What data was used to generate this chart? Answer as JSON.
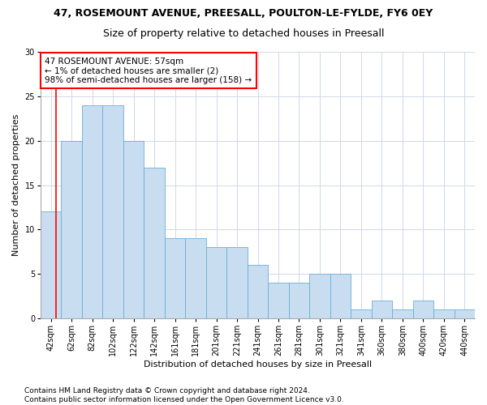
{
  "title": "47, ROSEMOUNT AVENUE, PREESALL, POULTON-LE-FYLDE, FY6 0EY",
  "subtitle": "Size of property relative to detached houses in Preesall",
  "xlabel": "Distribution of detached houses by size in Preesall",
  "ylabel": "Number of detached properties",
  "footnote": "Contains HM Land Registry data © Crown copyright and database right 2024.\nContains public sector information licensed under the Open Government Licence v3.0.",
  "categories": [
    "42sqm",
    "62sqm",
    "82sqm",
    "102sqm",
    "122sqm",
    "142sqm",
    "161sqm",
    "181sqm",
    "201sqm",
    "221sqm",
    "241sqm",
    "261sqm",
    "281sqm",
    "301sqm",
    "321sqm",
    "341sqm",
    "360sqm",
    "380sqm",
    "400sqm",
    "420sqm",
    "440sqm"
  ],
  "bar_values": [
    12,
    20,
    24,
    24,
    20,
    17,
    9,
    9,
    8,
    8,
    6,
    4,
    4,
    5,
    5,
    1,
    2,
    1,
    2,
    1,
    1
  ],
  "bar_color": "#c9ddf0",
  "bar_edge_color": "#6baed6",
  "annotation_text_line1": "47 ROSEMOUNT AVENUE: 57sqm",
  "annotation_text_line2": "← 1% of detached houses are smaller (2)",
  "annotation_text_line3": "98% of semi-detached houses are larger (158) →",
  "annotation_box_color": "white",
  "annotation_box_edge_color": "red",
  "vline_color": "red",
  "ylim": [
    0,
    30
  ],
  "yticks": [
    0,
    5,
    10,
    15,
    20,
    25,
    30
  ],
  "grid_color": "#d0d8e8",
  "background_color": "white",
  "title_fontsize": 9,
  "subtitle_fontsize": 9,
  "axis_label_fontsize": 8,
  "tick_fontsize": 7,
  "annotation_fontsize": 7.5,
  "footnote_fontsize": 6.5
}
